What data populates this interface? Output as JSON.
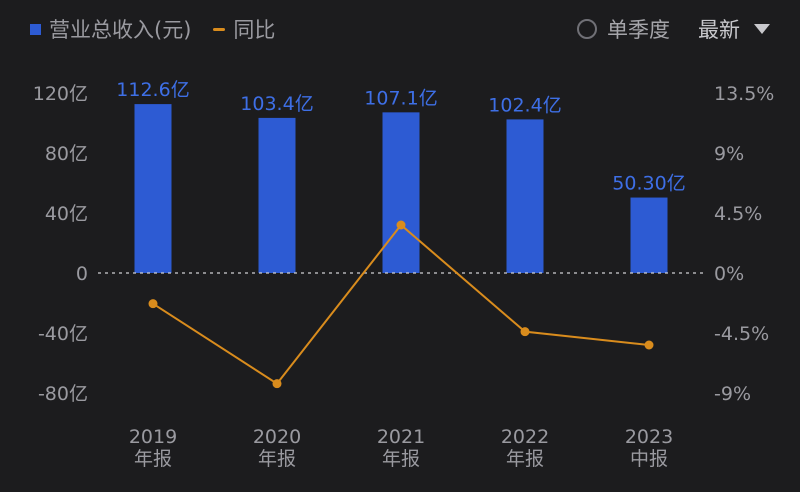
{
  "legend": {
    "bar_label": "营业总收入(元)",
    "line_label": "同比"
  },
  "controls": {
    "single_quarter_label": "单季度",
    "period_value": "最新",
    "radio_icon": "radio-unchecked-icon",
    "dropdown_icon": "triangle-down-icon"
  },
  "colors": {
    "background": "#1c1c1e",
    "bar": "#2d5bd3",
    "bar_label": "#3e6fe6",
    "line": "#d98c1d",
    "axis_text": "#9a9aa0",
    "zero_line": "#cfcfd3"
  },
  "chart_data": {
    "type": "bar",
    "categories": [
      "2019\n年报",
      "2020\n年报",
      "2021\n年报",
      "2022\n年报",
      "2023\n中报"
    ],
    "series": [
      {
        "name": "营业总收入(元)",
        "type": "bar",
        "axis": "left",
        "values": [
          112.6,
          103.4,
          107.1,
          102.4,
          50.3
        ],
        "data_labels": [
          "112.6亿",
          "103.4亿",
          "107.1亿",
          "102.4亿",
          "50.30亿"
        ]
      },
      {
        "name": "同比",
        "type": "line",
        "axis": "right",
        "values": [
          -2.3,
          -8.3,
          3.6,
          -4.4,
          -5.4
        ]
      }
    ],
    "left_axis": {
      "ticks": [
        120,
        80,
        40,
        0,
        -40,
        -80
      ],
      "tick_labels": [
        "120亿",
        "80亿",
        "40亿",
        "0",
        "-40亿",
        "-80亿"
      ],
      "ylim": [
        -80,
        120
      ]
    },
    "right_axis": {
      "ticks": [
        13.5,
        9,
        4.5,
        0,
        -4.5,
        -9
      ],
      "tick_labels": [
        "13.5%",
        "9%",
        "4.5%",
        "0%",
        "-4.5%",
        "-9%"
      ],
      "ylim": [
        -9,
        13.5
      ]
    },
    "zero_line": "dashed",
    "grid": false,
    "legend_position": "top-left"
  }
}
